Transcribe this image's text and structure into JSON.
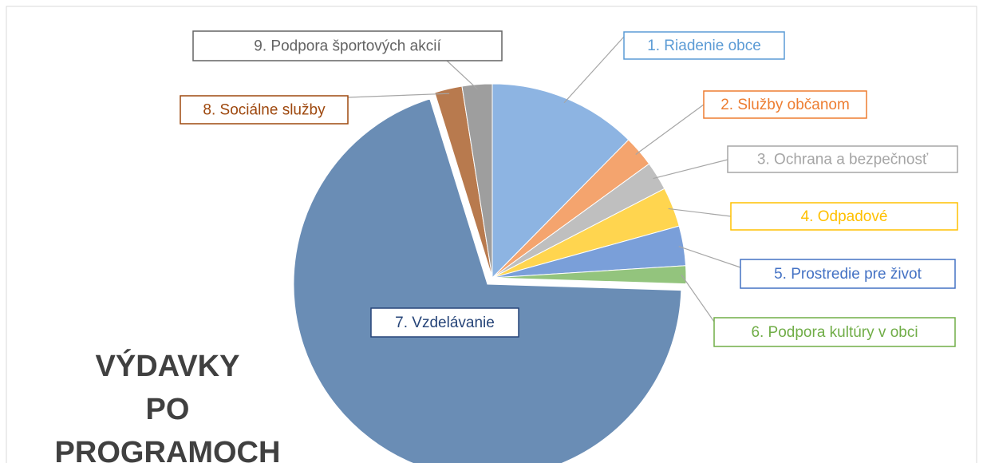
{
  "chart_data": {
    "type": "pie",
    "title": "VÝDAVKY\nPO PROGRAMOCH",
    "categories": [
      "1. Riadenie obce",
      "2. Služby občanom",
      "3. Ochrana a bezpečnosť",
      "4. Odpadové",
      "5. Prostredie pre život",
      "6. Podpora kultúry v obci",
      "7. Vzdelávanie",
      "8. Sociálne služby",
      "9. Podpora športových akcií"
    ],
    "values": [
      12.4,
      2.6,
      2.4,
      3.3,
      3.3,
      1.5,
      69.7,
      2.3,
      2.5
    ],
    "colors": [
      "#8db4e2",
      "#f4a46e",
      "#bfbfbf",
      "#ffd54f",
      "#7a9fd9",
      "#93c47d",
      "#6a8db5",
      "#b87a4e",
      "#9e9e9e"
    ],
    "label_colors": [
      "#5b9bd5",
      "#ed7d31",
      "#a5a5a5",
      "#ffc000",
      "#4472c4",
      "#70ad47",
      "#264478",
      "#9e480e",
      "#636363"
    ]
  }
}
